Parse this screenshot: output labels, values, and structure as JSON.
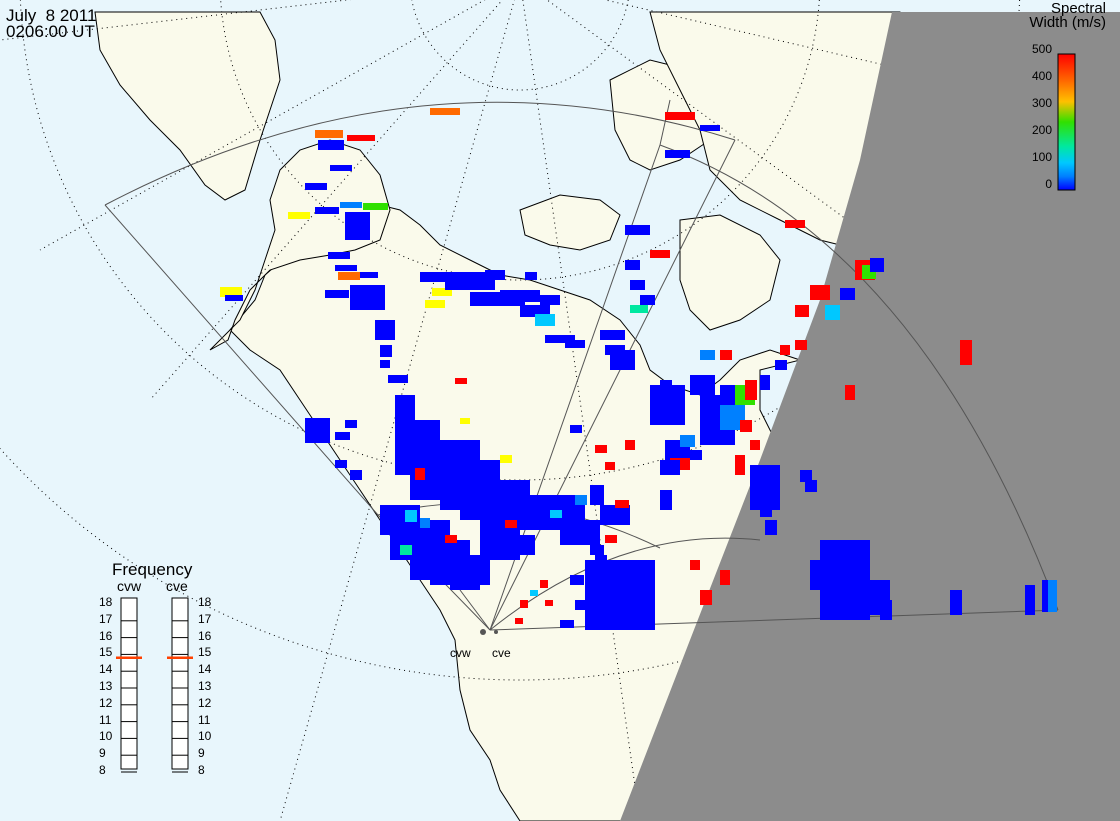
{
  "header": {
    "date": "July  8 2011",
    "time": "0206:00 UT"
  },
  "scale": {
    "title_line1": "Spectral",
    "title_line2": "Width (m/s)",
    "ticks": [
      "500",
      "400",
      "300",
      "200",
      "100",
      "0"
    ],
    "colors": [
      "#ff0000",
      "#ff6a00",
      "#ffc000",
      "#ffff00",
      "#30e000",
      "#00e8a0",
      "#00c8ff",
      "#0080ff",
      "#0000ff"
    ]
  },
  "frequency": {
    "title": "Frequency",
    "radars": [
      {
        "label": "cvw",
        "value_mhz": 14.8
      },
      {
        "label": "cve",
        "value_mhz": 14.8
      }
    ],
    "ticks": [
      "18",
      "17",
      "16",
      "15",
      "14",
      "13",
      "12",
      "11",
      "10",
      "9",
      "8"
    ],
    "marker_color": "#ff4000"
  },
  "sites": [
    "cvw",
    "cve"
  ],
  "colors": {
    "ocean": "#e8f6fc",
    "land": "#fafaeb",
    "night": "#8c8c8c",
    "coast": "#000000",
    "grid": "#000000"
  }
}
